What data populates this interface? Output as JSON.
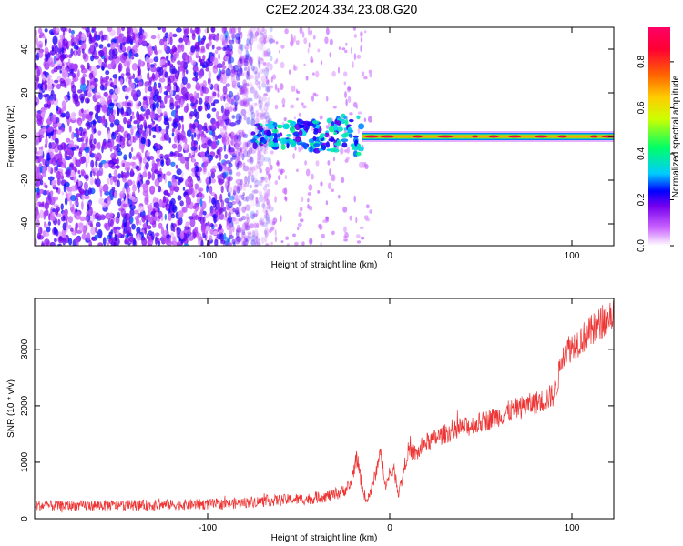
{
  "title": "C2E2.2024.334.23.08.G20",
  "chart_data": [
    {
      "type": "heatmap",
      "xlabel": "Height of straight line (km)",
      "ylabel": "Frequency (Hz)",
      "xlim": [
        -195,
        123
      ],
      "ylim": [
        -50,
        50
      ],
      "x_ticks": [
        -100,
        0,
        100
      ],
      "x_tick_labels": [
        "-100",
        "0",
        "100"
      ],
      "y_ticks": [
        -40,
        -20,
        0,
        20,
        40
      ],
      "y_tick_labels": [
        "-40",
        "-20",
        "0",
        "20",
        "40"
      ],
      "colorbar": {
        "label": "Normalized spectral amplitude",
        "range": [
          0,
          0.95
        ],
        "ticks": [
          0.0,
          0.2,
          0.4,
          0.6,
          0.8
        ],
        "tick_labels": [
          "0.0",
          "0.2",
          "0.4",
          "0.6",
          "0.8"
        ],
        "colors": [
          "#ffffff",
          "#cc66ff",
          "#7700ee",
          "#0000ff",
          "#00ccff",
          "#00ff66",
          "#ccff00",
          "#ffcc00",
          "#ff6600",
          "#ff0033",
          "#ff0066"
        ]
      },
      "features": {
        "noise_region_x": [
          -195,
          -75
        ],
        "noise_level": 0.25,
        "transition_x": [
          -75,
          -15
        ],
        "signal_line_freq": 0,
        "signal_line_x": [
          -15,
          123
        ],
        "signal_line_amplitude": 0.9
      }
    },
    {
      "type": "line",
      "xlabel": "Height of straight line (km)",
      "ylabel": "SNR (10 * v/v)",
      "xlim": [
        -195,
        123
      ],
      "ylim": [
        0,
        3900
      ],
      "x_ticks": [
        -100,
        0,
        100
      ],
      "x_tick_labels": [
        "-100",
        "0",
        "100"
      ],
      "y_ticks": [
        0,
        1000,
        2000,
        3000
      ],
      "y_tick_labels": [
        "0",
        "1000",
        "2000",
        "3000"
      ],
      "series": [
        {
          "color": "#ee3333",
          "x": [
            -195,
            -170,
            -140,
            -110,
            -85,
            -75,
            -60,
            -45,
            -30,
            -22,
            -18,
            -16,
            -13,
            -10,
            -5,
            -2,
            2,
            5,
            10,
            15,
            20,
            30,
            50,
            70,
            85,
            90,
            92,
            95,
            100,
            110,
            123
          ],
          "values": [
            230,
            230,
            240,
            250,
            270,
            300,
            330,
            350,
            420,
            560,
            1100,
            700,
            300,
            520,
            1150,
            600,
            900,
            450,
            1200,
            1150,
            1350,
            1500,
            1700,
            1950,
            2100,
            2200,
            2400,
            2950,
            3050,
            3300,
            3650
          ],
          "noise_amplitude": 160
        }
      ]
    }
  ]
}
